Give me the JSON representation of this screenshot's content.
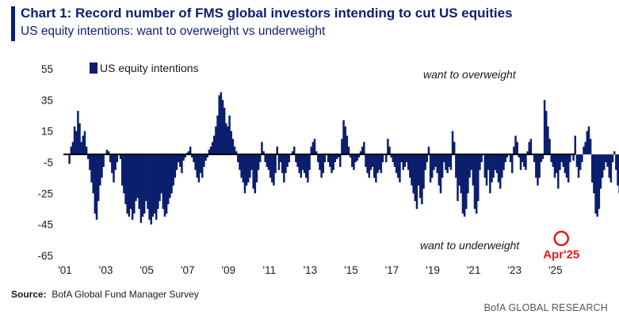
{
  "header": {
    "title": "Chart 1: Record number of FMS global investors intending to cut US equities",
    "subtitle": "US equity intentions: want to overweight vs underweight"
  },
  "footer": {
    "source_label": "Source:",
    "source_text": "BofA Global Fund Manager Survey",
    "brand": "BofA GLOBAL RESEARCH"
  },
  "colors": {
    "bar": "#0b1f6e",
    "highlight": "#e01b1b",
    "text": "#1a1a1a"
  },
  "chart_data": {
    "type": "bar",
    "title": "Chart 1: Record number of FMS global investors intending to cut US equities",
    "subtitle": "US equity intentions: want to overweight vs underweight",
    "xlabel": "",
    "ylabel": "",
    "ylim": [
      -65,
      55
    ],
    "yticks": [
      55,
      35,
      15,
      -5,
      -25,
      -45,
      -65
    ],
    "baseline": 0,
    "xlim": [
      2001.0,
      2025.9
    ],
    "xticks": [
      {
        "value": 2001,
        "label": "'01"
      },
      {
        "value": 2003,
        "label": "'03"
      },
      {
        "value": 2005,
        "label": "'05"
      },
      {
        "value": 2007,
        "label": "'07"
      },
      {
        "value": 2009,
        "label": "'09"
      },
      {
        "value": 2011,
        "label": "'11"
      },
      {
        "value": 2013,
        "label": "'13"
      },
      {
        "value": 2015,
        "label": "'15"
      },
      {
        "value": 2017,
        "label": "'17"
      },
      {
        "value": 2019,
        "label": "'19"
      },
      {
        "value": 2021,
        "label": "'21"
      },
      {
        "value": 2023,
        "label": "'23"
      },
      {
        "value": 2025,
        "label": "'25"
      }
    ],
    "legend": {
      "label": "US equity intentions",
      "position": "top-left"
    },
    "annotations": {
      "overweight": "want to overweight",
      "underweight": "want to underweight",
      "highlight_label": "Apr'25"
    },
    "highlight": {
      "x": 2025.25,
      "y": -53
    },
    "series": [
      {
        "name": "US equity intentions",
        "frequency": "monthly",
        "start": 2001.17,
        "values": [
          -6,
          5,
          8,
          18,
          15,
          28,
          20,
          8,
          12,
          15,
          5,
          -3,
          -10,
          -18,
          -25,
          -38,
          -42,
          -30,
          -20,
          -15,
          -8,
          0,
          3,
          2,
          -5,
          -12,
          -18,
          -10,
          -5,
          0,
          -3,
          -20,
          -25,
          -32,
          -38,
          -40,
          -35,
          -42,
          -38,
          -30,
          -28,
          -35,
          -44,
          -40,
          -38,
          -30,
          -35,
          -42,
          -45,
          -40,
          -38,
          -42,
          -35,
          -30,
          -25,
          -35,
          -40,
          -38,
          -32,
          -28,
          -25,
          -20,
          -15,
          -10,
          -5,
          -8,
          -12,
          -4,
          -2,
          1,
          2,
          5,
          -2,
          -5,
          -10,
          -15,
          -18,
          -12,
          -15,
          -8,
          -4,
          -2,
          3,
          5,
          8,
          12,
          18,
          25,
          38,
          40,
          35,
          30,
          20,
          18,
          25,
          15,
          10,
          5,
          2,
          -5,
          -10,
          -15,
          -18,
          -25,
          -20,
          -18,
          -15,
          -10,
          -22,
          -25,
          -18,
          -10,
          -5,
          8,
          2,
          -5,
          -8,
          -10,
          -15,
          -18,
          -20,
          -12,
          5,
          -10,
          -5,
          -12,
          -18,
          -12,
          -8,
          -5,
          0,
          2,
          5,
          -5,
          -8,
          -12,
          -15,
          -10,
          -12,
          -15,
          -18,
          -10,
          5,
          8,
          10,
          2,
          -5,
          -10,
          -15,
          -12,
          -5,
          0,
          -5,
          -8,
          -12,
          -10,
          -5,
          -3,
          -2,
          -8,
          10,
          22,
          18,
          12,
          5,
          -2,
          -8,
          -10,
          -5,
          -4,
          -2,
          2,
          5,
          8,
          -8,
          -12,
          -15,
          -10,
          -8,
          -15,
          -18,
          -12,
          -10,
          -12,
          -5,
          0,
          -5,
          10,
          5,
          -2,
          -5,
          -8,
          -12,
          -15,
          -18,
          -5,
          -10,
          -8,
          -5,
          -10,
          -15,
          -20,
          -25,
          -30,
          -35,
          -20,
          -28,
          -32,
          -22,
          -10,
          -5,
          5,
          -18,
          -15,
          -10,
          -8,
          -12,
          -20,
          -25,
          -15,
          -5,
          -10,
          -12,
          -8,
          -10,
          15,
          8,
          -15,
          -30,
          -20,
          -25,
          -38,
          -40,
          -35,
          -25,
          -15,
          -10,
          -20,
          -35,
          -38,
          -30,
          -10,
          -5,
          0,
          -15,
          -20,
          -10,
          -25,
          -18,
          -15,
          -10,
          -12,
          -18,
          -22,
          -15,
          -10,
          -5,
          -2,
          0,
          -5,
          -12,
          5,
          12,
          8,
          -2,
          -10,
          -5,
          -8,
          -10,
          2,
          8,
          10,
          0,
          -5,
          -15,
          -20,
          -15,
          -5,
          -3,
          35,
          28,
          18,
          10,
          -5,
          -8,
          -15,
          -12,
          -22,
          -10,
          -5,
          -8,
          -12,
          -15,
          -18,
          -5,
          0,
          -4,
          12,
          -8,
          -15,
          -10,
          -5,
          5,
          8,
          15,
          18,
          10,
          -18,
          -25,
          -38,
          -40,
          -35,
          -22,
          -15,
          -10,
          -5,
          -8,
          -15,
          -18,
          -5,
          2,
          -10,
          -20,
          -25,
          -5,
          5,
          2,
          -2,
          10,
          8,
          -5,
          15,
          22,
          18,
          10,
          8,
          -5,
          -12,
          -40,
          -53
        ]
      }
    ]
  }
}
